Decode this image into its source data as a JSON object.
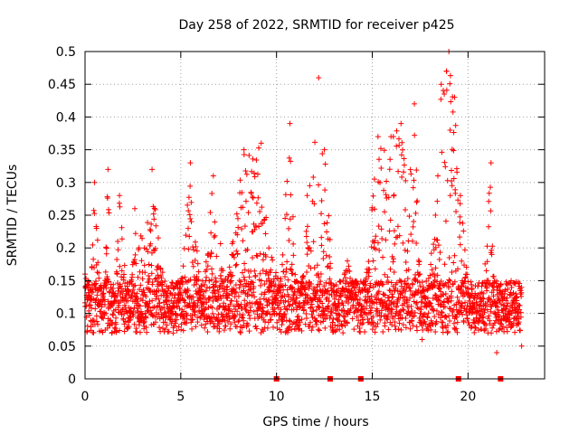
{
  "chart_data": {
    "type": "scatter",
    "title": "Day 258 of 2022, SRMTID for receiver p425",
    "xlabel": "GPS time / hours",
    "ylabel": "SRMTID / TECUs",
    "xlim": [
      0,
      24
    ],
    "ylim": [
      0,
      0.5
    ],
    "x_ticks": [
      0,
      5,
      10,
      15,
      20
    ],
    "y_ticks": [
      0,
      0.05,
      0.1,
      0.15,
      0.2,
      0.25,
      0.3,
      0.35,
      0.4,
      0.45,
      0.5
    ],
    "y_tick_labels": [
      "0",
      "0.05",
      "0.1",
      "0.15",
      "0.2",
      "0.25",
      "0.3",
      "0.35",
      "0.4",
      "0.45",
      "0.5"
    ],
    "grid": true,
    "marker": "+",
    "color": "#ff0000",
    "sampling_interval_hours": 0.0083,
    "series_points_total": "approximately 2750 points between 0 and 22.8 hours",
    "representative_points": [
      [
        0.0,
        0.16
      ],
      [
        0.3,
        0.12
      ],
      [
        0.5,
        0.3
      ],
      [
        0.6,
        0.23
      ],
      [
        1.0,
        0.1
      ],
      [
        1.2,
        0.32
      ],
      [
        1.4,
        0.07
      ],
      [
        1.8,
        0.28
      ],
      [
        2.3,
        0.08
      ],
      [
        2.6,
        0.26
      ],
      [
        3.1,
        0.2
      ],
      [
        3.5,
        0.32
      ],
      [
        4.2,
        0.12
      ],
      [
        4.6,
        0.07
      ],
      [
        5.0,
        0.15
      ],
      [
        5.5,
        0.33
      ],
      [
        6.1,
        0.1
      ],
      [
        6.7,
        0.31
      ],
      [
        7.4,
        0.14
      ],
      [
        8.3,
        0.35
      ],
      [
        9.2,
        0.36
      ],
      [
        9.6,
        0.2
      ],
      [
        10.2,
        0.14
      ],
      [
        10.7,
        0.39
      ],
      [
        11.1,
        0.08
      ],
      [
        11.6,
        0.28
      ],
      [
        12.2,
        0.46
      ],
      [
        12.5,
        0.35
      ],
      [
        13.1,
        0.1
      ],
      [
        13.7,
        0.18
      ],
      [
        14.5,
        0.09
      ],
      [
        15.3,
        0.37
      ],
      [
        16.1,
        0.37
      ],
      [
        16.5,
        0.39
      ],
      [
        17.2,
        0.42
      ],
      [
        17.6,
        0.06
      ],
      [
        18.3,
        0.25
      ],
      [
        18.6,
        0.45
      ],
      [
        19.0,
        0.5
      ],
      [
        19.3,
        0.43
      ],
      [
        19.6,
        0.28
      ],
      [
        20.2,
        0.08
      ],
      [
        20.8,
        0.13
      ],
      [
        21.2,
        0.33
      ],
      [
        21.5,
        0.04
      ],
      [
        22.0,
        0.09
      ],
      [
        22.5,
        0.13
      ],
      [
        22.8,
        0.05
      ]
    ],
    "gap_markers_x_hours": [
      10.0,
      12.8,
      14.4,
      19.5,
      21.7
    ]
  }
}
